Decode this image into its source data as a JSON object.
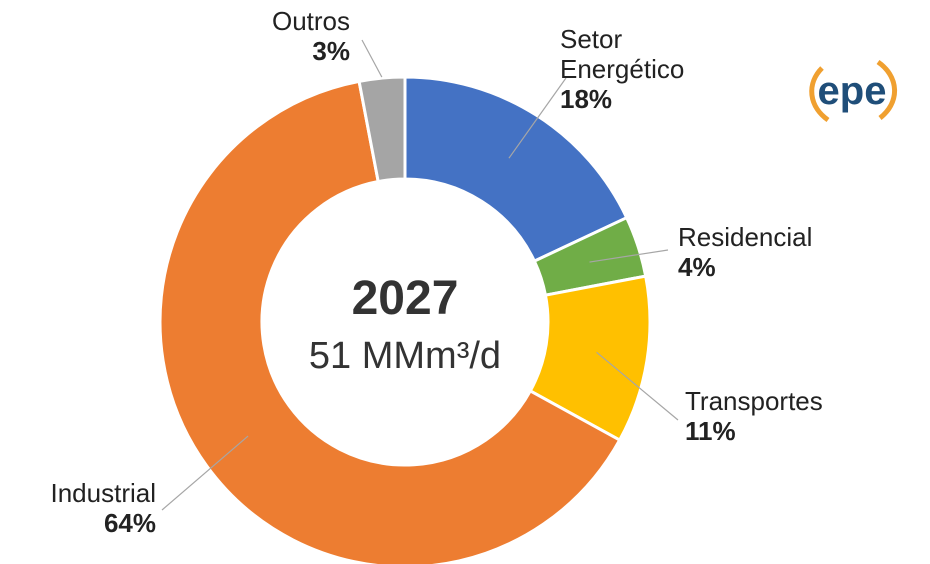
{
  "chart_data": {
    "type": "donut",
    "center_title": "2027",
    "center_subtitle": "51 MMm³/d",
    "logo": "epe",
    "categories": [
      "Setor Energético",
      "Residencial",
      "Transportes",
      "Industrial",
      "Outros"
    ],
    "values": [
      18,
      4,
      11,
      64,
      3
    ],
    "value_labels": [
      "18%",
      "4%",
      "11%",
      "64%",
      "3%"
    ],
    "colors": [
      "#4472c4",
      "#70ad47",
      "#ffc000",
      "#ed7d31",
      "#a5a5a5"
    ]
  }
}
